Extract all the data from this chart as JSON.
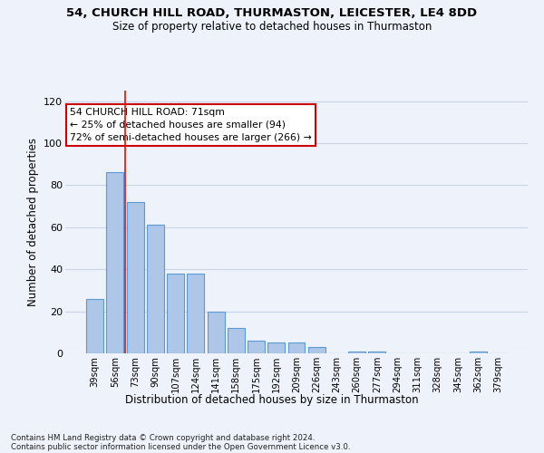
{
  "title_line1": "54, CHURCH HILL ROAD, THURMASTON, LEICESTER, LE4 8DD",
  "title_line2": "Size of property relative to detached houses in Thurmaston",
  "xlabel": "Distribution of detached houses by size in Thurmaston",
  "ylabel": "Number of detached properties",
  "categories": [
    "39sqm",
    "56sqm",
    "73sqm",
    "90sqm",
    "107sqm",
    "124sqm",
    "141sqm",
    "158sqm",
    "175sqm",
    "192sqm",
    "209sqm",
    "226sqm",
    "243sqm",
    "260sqm",
    "277sqm",
    "294sqm",
    "311sqm",
    "328sqm",
    "345sqm",
    "362sqm",
    "379sqm"
  ],
  "values": [
    26,
    86,
    72,
    61,
    38,
    38,
    20,
    12,
    6,
    5,
    5,
    3,
    0,
    1,
    1,
    0,
    0,
    0,
    0,
    1,
    0
  ],
  "bar_color": "#aec6e8",
  "bar_edge_color": "#5b9bd5",
  "red_line_bar_index": 2,
  "annotation_text": "54 CHURCH HILL ROAD: 71sqm\n← 25% of detached houses are smaller (94)\n72% of semi-detached houses are larger (266) →",
  "annotation_box_color": "#ffffff",
  "annotation_box_edge_color": "#cc0000",
  "ylim": [
    0,
    125
  ],
  "yticks": [
    0,
    20,
    40,
    60,
    80,
    100,
    120
  ],
  "grid_color": "#c8d4e8",
  "bg_color": "#eef2fa",
  "footnote_line1": "Contains HM Land Registry data © Crown copyright and database right 2024.",
  "footnote_line2": "Contains public sector information licensed under the Open Government Licence v3.0.",
  "figsize": [
    6.0,
    5.0
  ],
  "dpi": 100
}
